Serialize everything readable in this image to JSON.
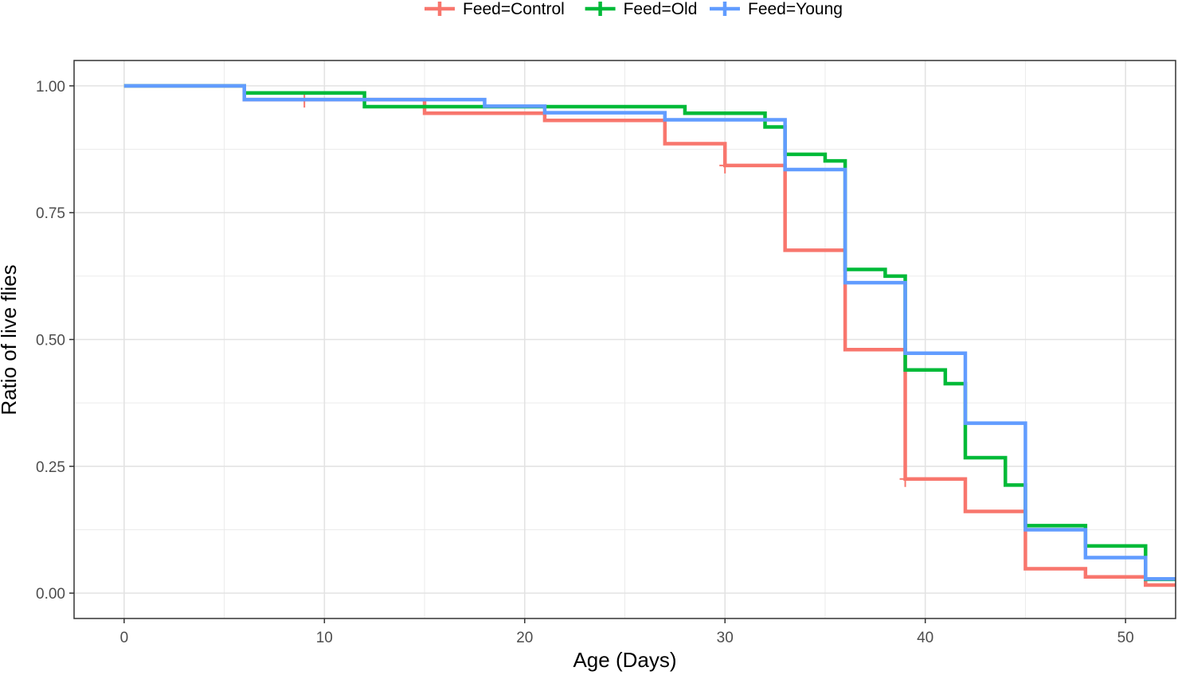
{
  "chart_data": {
    "type": "line",
    "subtype": "kaplan-meier step",
    "title": "",
    "xlabel": "Age (Days)",
    "ylabel": "Ratio of live flies",
    "xlim": [
      -2.5,
      52.5
    ],
    "ylim": [
      -0.05,
      1.05
    ],
    "x_ticks": [
      0,
      10,
      20,
      30,
      40,
      50
    ],
    "x_tick_labels": [
      "0",
      "10",
      "20",
      "30",
      "40",
      "50"
    ],
    "y_ticks": [
      0,
      0.25,
      0.5,
      0.75,
      1.0
    ],
    "y_tick_labels": [
      "0.00",
      "0.25",
      "0.50",
      "0.75",
      "1.00"
    ],
    "grid": true,
    "legend": {
      "position": "top",
      "entries": [
        "Feed=Control",
        "Feed=Old",
        "Feed=Young"
      ]
    },
    "series": [
      {
        "name": "Feed=Control",
        "color": "#F8766D",
        "steps": [
          [
            0,
            1.0
          ],
          [
            6,
            0.973
          ],
          [
            15,
            0.946
          ],
          [
            21,
            0.932
          ],
          [
            27,
            0.886
          ],
          [
            30,
            0.843
          ],
          [
            33,
            0.676
          ],
          [
            36,
            0.48
          ],
          [
            39,
            0.225
          ],
          [
            42,
            0.161
          ],
          [
            45,
            0.048
          ],
          [
            48,
            0.032
          ],
          [
            51,
            0.016
          ],
          [
            52.5,
            0.016
          ]
        ],
        "censored": [
          [
            9,
            0.973
          ],
          [
            30,
            0.843
          ],
          [
            39,
            0.225
          ]
        ]
      },
      {
        "name": "Feed=Old",
        "color": "#00BA38",
        "steps": [
          [
            0,
            1.0
          ],
          [
            6,
            0.986
          ],
          [
            12,
            0.959
          ],
          [
            28,
            0.946
          ],
          [
            32,
            0.919
          ],
          [
            33,
            0.865
          ],
          [
            35,
            0.852
          ],
          [
            36,
            0.638
          ],
          [
            38,
            0.625
          ],
          [
            39,
            0.44
          ],
          [
            41,
            0.413
          ],
          [
            42,
            0.267
          ],
          [
            44,
            0.213
          ],
          [
            45,
            0.133
          ],
          [
            48,
            0.093
          ],
          [
            51,
            0.027
          ],
          [
            52.5,
            0.027
          ]
        ],
        "censored": []
      },
      {
        "name": "Feed=Young",
        "color": "#619CFF",
        "steps": [
          [
            0,
            1.0
          ],
          [
            6,
            0.973
          ],
          [
            18,
            0.96
          ],
          [
            21,
            0.947
          ],
          [
            27,
            0.933
          ],
          [
            33,
            0.835
          ],
          [
            36,
            0.612
          ],
          [
            39,
            0.473
          ],
          [
            42,
            0.335
          ],
          [
            45,
            0.125
          ],
          [
            48,
            0.07
          ],
          [
            51,
            0.028
          ],
          [
            52.5,
            0.028
          ]
        ],
        "censored": []
      }
    ]
  }
}
